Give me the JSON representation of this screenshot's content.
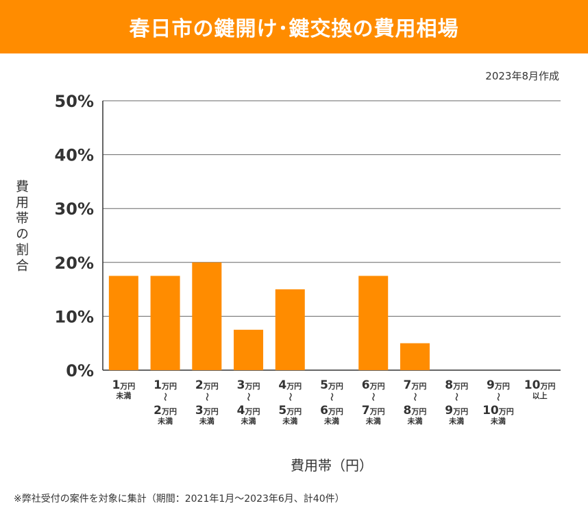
{
  "title": "春日市の鍵開け･鍵交換の費用相場",
  "date_note": "2023年8月作成",
  "footnote": "※弊社受付の案件を対象に集計（期間：2021年1月～2023年6月、計40件）",
  "colors": {
    "header": "#ff8c00",
    "bar": "#ff8c00",
    "grid": "#555555"
  },
  "chart_data": {
    "type": "bar",
    "xlabel": "費用帯（円）",
    "ylabel": "費用帯の割合",
    "ylim": [
      0,
      50
    ],
    "yticks": [
      "0%",
      "10%",
      "20%",
      "30%",
      "40%",
      "50%"
    ],
    "grid": true,
    "categories": [
      {
        "num1": "1",
        "unit1": "万円",
        "tilde": "",
        "num2": "",
        "unit2": "",
        "note": "未満"
      },
      {
        "num1": "1",
        "unit1": "万円",
        "tilde": "～",
        "num2": "2",
        "unit2": "万円",
        "note": "未満"
      },
      {
        "num1": "2",
        "unit1": "万円",
        "tilde": "～",
        "num2": "3",
        "unit2": "万円",
        "note": "未満"
      },
      {
        "num1": "3",
        "unit1": "万円",
        "tilde": "～",
        "num2": "4",
        "unit2": "万円",
        "note": "未満"
      },
      {
        "num1": "4",
        "unit1": "万円",
        "tilde": "～",
        "num2": "5",
        "unit2": "万円",
        "note": "未満"
      },
      {
        "num1": "5",
        "unit1": "万円",
        "tilde": "～",
        "num2": "6",
        "unit2": "万円",
        "note": "未満"
      },
      {
        "num1": "6",
        "unit1": "万円",
        "tilde": "～",
        "num2": "7",
        "unit2": "万円",
        "note": "未満"
      },
      {
        "num1": "7",
        "unit1": "万円",
        "tilde": "～",
        "num2": "8",
        "unit2": "万円",
        "note": "未満"
      },
      {
        "num1": "8",
        "unit1": "万円",
        "tilde": "～",
        "num2": "9",
        "unit2": "万円",
        "note": "未満"
      },
      {
        "num1": "9",
        "unit1": "万円",
        "tilde": "～",
        "num2": "10",
        "unit2": "万円",
        "note": "未満"
      },
      {
        "num1": "10",
        "unit1": "万円",
        "tilde": "",
        "num2": "",
        "unit2": "",
        "note": "以上"
      }
    ],
    "values": [
      17.5,
      17.5,
      20,
      7.5,
      15,
      0,
      17.5,
      5,
      0,
      0,
      0
    ]
  }
}
